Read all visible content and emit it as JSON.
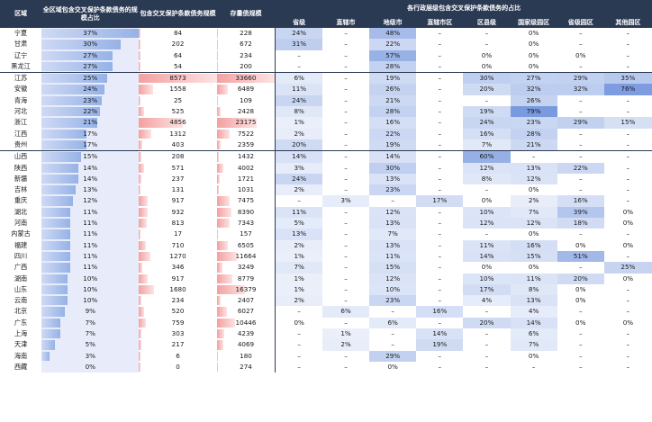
{
  "header": {
    "region": "区域",
    "share_all": "全区域包含交叉保护条款债务的规模占比",
    "debt_cross": "包含交叉保护条款债务规模",
    "debt_total": "存量债规模",
    "level_group": "各行政层级包含交叉保护条款债务的占比",
    "levels": [
      "省级",
      "直辖市",
      "地级市",
      "直辖市区",
      "区县级",
      "国家级园区",
      "省级园区",
      "其他园区"
    ]
  },
  "colors": {
    "header_bg": "#2b3a53",
    "blue_fill": "#7a9fe0",
    "red_fill": "#f3a0a0"
  },
  "rows": [
    {
      "name": "宁夏",
      "share": "37%",
      "s": 0.37,
      "cross": "84",
      "c": 84,
      "total": "228",
      "t": 228,
      "levels": [
        "24%",
        "–",
        "48%",
        "–",
        "–",
        "0%",
        "–",
        "–"
      ]
    },
    {
      "name": "甘肃",
      "share": "30%",
      "s": 0.3,
      "cross": "202",
      "c": 202,
      "total": "672",
      "t": 672,
      "levels": [
        "31%",
        "–",
        "22%",
        "–",
        "–",
        "0%",
        "–",
        "–"
      ]
    },
    {
      "name": "辽宁",
      "share": "27%",
      "s": 0.27,
      "cross": "64",
      "c": 64,
      "total": "234",
      "t": 234,
      "levels": [
        "–",
        "–",
        "57%",
        "–",
        "0%",
        "0%",
        "0%",
        "–"
      ]
    },
    {
      "name": "黑龙江",
      "share": "27%",
      "s": 0.27,
      "cross": "54",
      "c": 54,
      "total": "200",
      "t": 200,
      "levels": [
        "–",
        "–",
        "28%",
        "–",
        "0%",
        "0%",
        "–",
        "–"
      ]
    },
    {
      "name": "江苏",
      "share": "25%",
      "s": 0.25,
      "cross": "8573",
      "c": 8573,
      "total": "33660",
      "t": 33660,
      "levels": [
        "6%",
        "–",
        "19%",
        "–",
        "30%",
        "27%",
        "29%",
        "35%"
      ]
    },
    {
      "name": "安徽",
      "share": "24%",
      "s": 0.24,
      "cross": "1558",
      "c": 1558,
      "total": "6489",
      "t": 6489,
      "levels": [
        "11%",
        "–",
        "26%",
        "–",
        "20%",
        "32%",
        "32%",
        "76%"
      ]
    },
    {
      "name": "青海",
      "share": "23%",
      "s": 0.23,
      "cross": "25",
      "c": 25,
      "total": "109",
      "t": 109,
      "levels": [
        "24%",
        "–",
        "21%",
        "–",
        "–",
        "26%",
        "–",
        "–"
      ]
    },
    {
      "name": "河北",
      "share": "22%",
      "s": 0.22,
      "cross": "525",
      "c": 525,
      "total": "2428",
      "t": 2428,
      "levels": [
        "8%",
        "–",
        "28%",
        "–",
        "19%",
        "79%",
        "–",
        "–"
      ]
    },
    {
      "name": "浙江",
      "share": "21%",
      "s": 0.21,
      "cross": "4856",
      "c": 4856,
      "total": "23175",
      "t": 23175,
      "levels": [
        "1%",
        "–",
        "16%",
        "–",
        "24%",
        "23%",
        "29%",
        "15%"
      ]
    },
    {
      "name": "江西",
      "share": "17%",
      "s": 0.17,
      "cross": "1312",
      "c": 1312,
      "total": "7522",
      "t": 7522,
      "levels": [
        "2%",
        "–",
        "22%",
        "–",
        "16%",
        "28%",
        "–",
        "–"
      ]
    },
    {
      "name": "贵州",
      "share": "17%",
      "s": 0.17,
      "cross": "403",
      "c": 403,
      "total": "2359",
      "t": 2359,
      "levels": [
        "20%",
        "–",
        "19%",
        "–",
        "7%",
        "21%",
        "–",
        "–"
      ]
    },
    {
      "name": "山西",
      "share": "15%",
      "s": 0.15,
      "cross": "208",
      "c": 208,
      "total": "1432",
      "t": 1432,
      "levels": [
        "14%",
        "–",
        "14%",
        "–",
        "60%",
        "–",
        "–",
        "–"
      ]
    },
    {
      "name": "陕西",
      "share": "14%",
      "s": 0.14,
      "cross": "571",
      "c": 571,
      "total": "4002",
      "t": 4002,
      "levels": [
        "3%",
        "–",
        "30%",
        "–",
        "12%",
        "13%",
        "22%",
        "–"
      ]
    },
    {
      "name": "新疆",
      "share": "14%",
      "s": 0.14,
      "cross": "237",
      "c": 237,
      "total": "1721",
      "t": 1721,
      "levels": [
        "24%",
        "–",
        "13%",
        "–",
        "8%",
        "12%",
        "–",
        "–"
      ]
    },
    {
      "name": "吉林",
      "share": "13%",
      "s": 0.13,
      "cross": "131",
      "c": 131,
      "total": "1031",
      "t": 1031,
      "levels": [
        "2%",
        "–",
        "23%",
        "–",
        "–",
        "0%",
        "–",
        "–"
      ]
    },
    {
      "name": "重庆",
      "share": "12%",
      "s": 0.12,
      "cross": "917",
      "c": 917,
      "total": "7475",
      "t": 7475,
      "levels": [
        "–",
        "3%",
        "–",
        "17%",
        "0%",
        "2%",
        "16%",
        "–"
      ]
    },
    {
      "name": "湖北",
      "share": "11%",
      "s": 0.11,
      "cross": "932",
      "c": 932,
      "total": "8390",
      "t": 8390,
      "levels": [
        "11%",
        "–",
        "12%",
        "–",
        "10%",
        "7%",
        "39%",
        "0%"
      ]
    },
    {
      "name": "河南",
      "share": "11%",
      "s": 0.11,
      "cross": "813",
      "c": 813,
      "total": "7343",
      "t": 7343,
      "levels": [
        "5%",
        "–",
        "13%",
        "–",
        "12%",
        "12%",
        "18%",
        "0%"
      ]
    },
    {
      "name": "内蒙古",
      "share": "11%",
      "s": 0.11,
      "cross": "17",
      "c": 17,
      "total": "157",
      "t": 157,
      "levels": [
        "13%",
        "–",
        "7%",
        "–",
        "–",
        "0%",
        "–",
        "–"
      ]
    },
    {
      "name": "福建",
      "share": "11%",
      "s": 0.11,
      "cross": "710",
      "c": 710,
      "total": "6505",
      "t": 6505,
      "levels": [
        "2%",
        "–",
        "13%",
        "–",
        "11%",
        "16%",
        "0%",
        "0%"
      ]
    },
    {
      "name": "四川",
      "share": "11%",
      "s": 0.11,
      "cross": "1270",
      "c": 1270,
      "total": "11664",
      "t": 11664,
      "levels": [
        "1%",
        "–",
        "11%",
        "–",
        "14%",
        "15%",
        "51%",
        "–"
      ]
    },
    {
      "name": "广西",
      "share": "11%",
      "s": 0.11,
      "cross": "346",
      "c": 346,
      "total": "3249",
      "t": 3249,
      "levels": [
        "7%",
        "–",
        "15%",
        "–",
        "0%",
        "0%",
        "–",
        "25%"
      ]
    },
    {
      "name": "湖南",
      "share": "10%",
      "s": 0.1,
      "cross": "917",
      "c": 917,
      "total": "8779",
      "t": 8779,
      "levels": [
        "1%",
        "–",
        "12%",
        "–",
        "10%",
        "11%",
        "20%",
        "0%"
      ]
    },
    {
      "name": "山东",
      "share": "10%",
      "s": 0.1,
      "cross": "1680",
      "c": 1680,
      "total": "16379",
      "t": 16379,
      "levels": [
        "1%",
        "–",
        "10%",
        "–",
        "17%",
        "8%",
        "0%",
        "–"
      ]
    },
    {
      "name": "云南",
      "share": "10%",
      "s": 0.1,
      "cross": "234",
      "c": 234,
      "total": "2407",
      "t": 2407,
      "levels": [
        "2%",
        "–",
        "23%",
        "–",
        "4%",
        "13%",
        "0%",
        "–"
      ]
    },
    {
      "name": "北京",
      "share": "9%",
      "s": 0.09,
      "cross": "520",
      "c": 520,
      "total": "6027",
      "t": 6027,
      "levels": [
        "–",
        "6%",
        "–",
        "16%",
        "–",
        "4%",
        "–",
        "–"
      ]
    },
    {
      "name": "广东",
      "share": "7%",
      "s": 0.07,
      "cross": "759",
      "c": 759,
      "total": "10446",
      "t": 10446,
      "levels": [
        "0%",
        "–",
        "6%",
        "–",
        "20%",
        "14%",
        "0%",
        "0%"
      ]
    },
    {
      "name": "上海",
      "share": "7%",
      "s": 0.07,
      "cross": "303",
      "c": 303,
      "total": "4239",
      "t": 4239,
      "levels": [
        "–",
        "1%",
        "–",
        "14%",
        "–",
        "6%",
        "–",
        "–"
      ]
    },
    {
      "name": "天津",
      "share": "5%",
      "s": 0.05,
      "cross": "217",
      "c": 217,
      "total": "4069",
      "t": 4069,
      "levels": [
        "–",
        "2%",
        "–",
        "19%",
        "–",
        "7%",
        "–",
        "–"
      ]
    },
    {
      "name": "海南",
      "share": "3%",
      "s": 0.03,
      "cross": "6",
      "c": 6,
      "total": "180",
      "t": 180,
      "levels": [
        "–",
        "–",
        "29%",
        "–",
        "–",
        "0%",
        "–",
        "–"
      ]
    },
    {
      "name": "西藏",
      "share": "0%",
      "s": 0.0,
      "cross": "0",
      "c": 0,
      "total": "274",
      "t": 274,
      "levels": [
        "–",
        "–",
        "0%",
        "–",
        "–",
        "–",
        "–",
        "–"
      ]
    }
  ]
}
